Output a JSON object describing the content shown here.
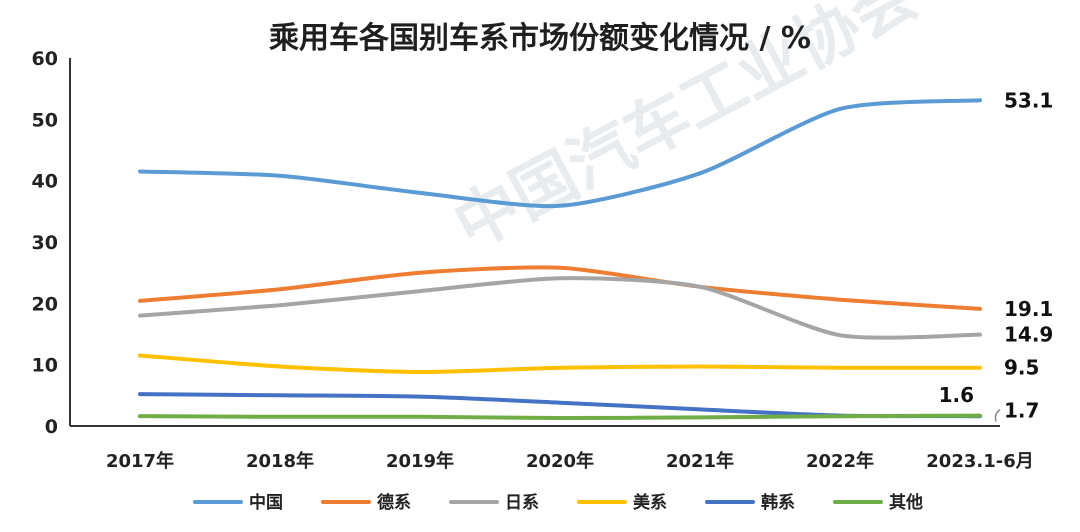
{
  "chart_data": {
    "type": "line",
    "title": "乘用车各国别车系市场份额变化情况 / %",
    "xlabel": "",
    "ylabel": "",
    "categories": [
      "2017年",
      "2018年",
      "2019年",
      "2020年",
      "2021年",
      "2022年",
      "2023.1-6月"
    ],
    "ylim": [
      0,
      60
    ],
    "yticks": [
      0,
      10,
      20,
      30,
      40,
      50,
      60
    ],
    "grid": false,
    "legend_position": "bottom",
    "series": [
      {
        "name": "中国",
        "color": "#5b9bd5",
        "values": [
          41.5,
          40.8,
          38.0,
          35.9,
          41.2,
          51.7,
          53.1
        ],
        "end_label": "53.1"
      },
      {
        "name": "德系",
        "color": "#ed7d31",
        "values": [
          20.4,
          22.3,
          25.0,
          25.8,
          22.7,
          20.6,
          19.1
        ],
        "end_label": "19.1"
      },
      {
        "name": "日系",
        "color": "#a5a5a5",
        "values": [
          18.0,
          19.7,
          22.0,
          24.1,
          22.7,
          14.8,
          14.9
        ],
        "end_label": "14.9"
      },
      {
        "name": "美系",
        "color": "#ffc000",
        "values": [
          11.5,
          9.7,
          8.8,
          9.5,
          9.7,
          9.5,
          9.5
        ],
        "end_label": "9.5"
      },
      {
        "name": "韩系",
        "color": "#4472c4",
        "values": [
          5.2,
          5.0,
          4.8,
          3.8,
          2.7,
          1.7,
          1.6
        ],
        "end_label": "1.6"
      },
      {
        "name": "其他",
        "color": "#70ad47",
        "values": [
          1.6,
          1.5,
          1.5,
          1.3,
          1.4,
          1.6,
          1.7
        ],
        "end_label": "1.7"
      }
    ],
    "watermark": "中国汽车工业协会"
  }
}
